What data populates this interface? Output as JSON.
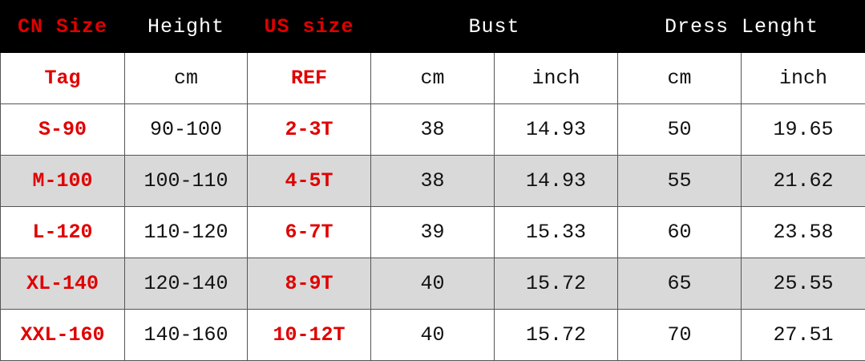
{
  "header": [
    "CN Size",
    "Height",
    "US size",
    "Bust",
    "Dress Lenght"
  ],
  "subheader": [
    "Tag",
    "cm",
    "REF",
    "cm",
    "inch",
    "cm",
    "inch"
  ],
  "rows": [
    [
      "S-90",
      "90-100",
      "2-3T",
      "38",
      "14.93",
      "50",
      "19.65"
    ],
    [
      "M-100",
      "100-110",
      "4-5T",
      "38",
      "14.93",
      "55",
      "21.62"
    ],
    [
      "L-120",
      "110-120",
      "6-7T",
      "39",
      "15.33",
      "60",
      "23.58"
    ],
    [
      "XL-140",
      "120-140",
      "8-9T",
      "40",
      "15.72",
      "65",
      "25.55"
    ],
    [
      "XXL-160",
      "140-160",
      "10-12T",
      "40",
      "15.72",
      "70",
      "27.51"
    ]
  ]
}
